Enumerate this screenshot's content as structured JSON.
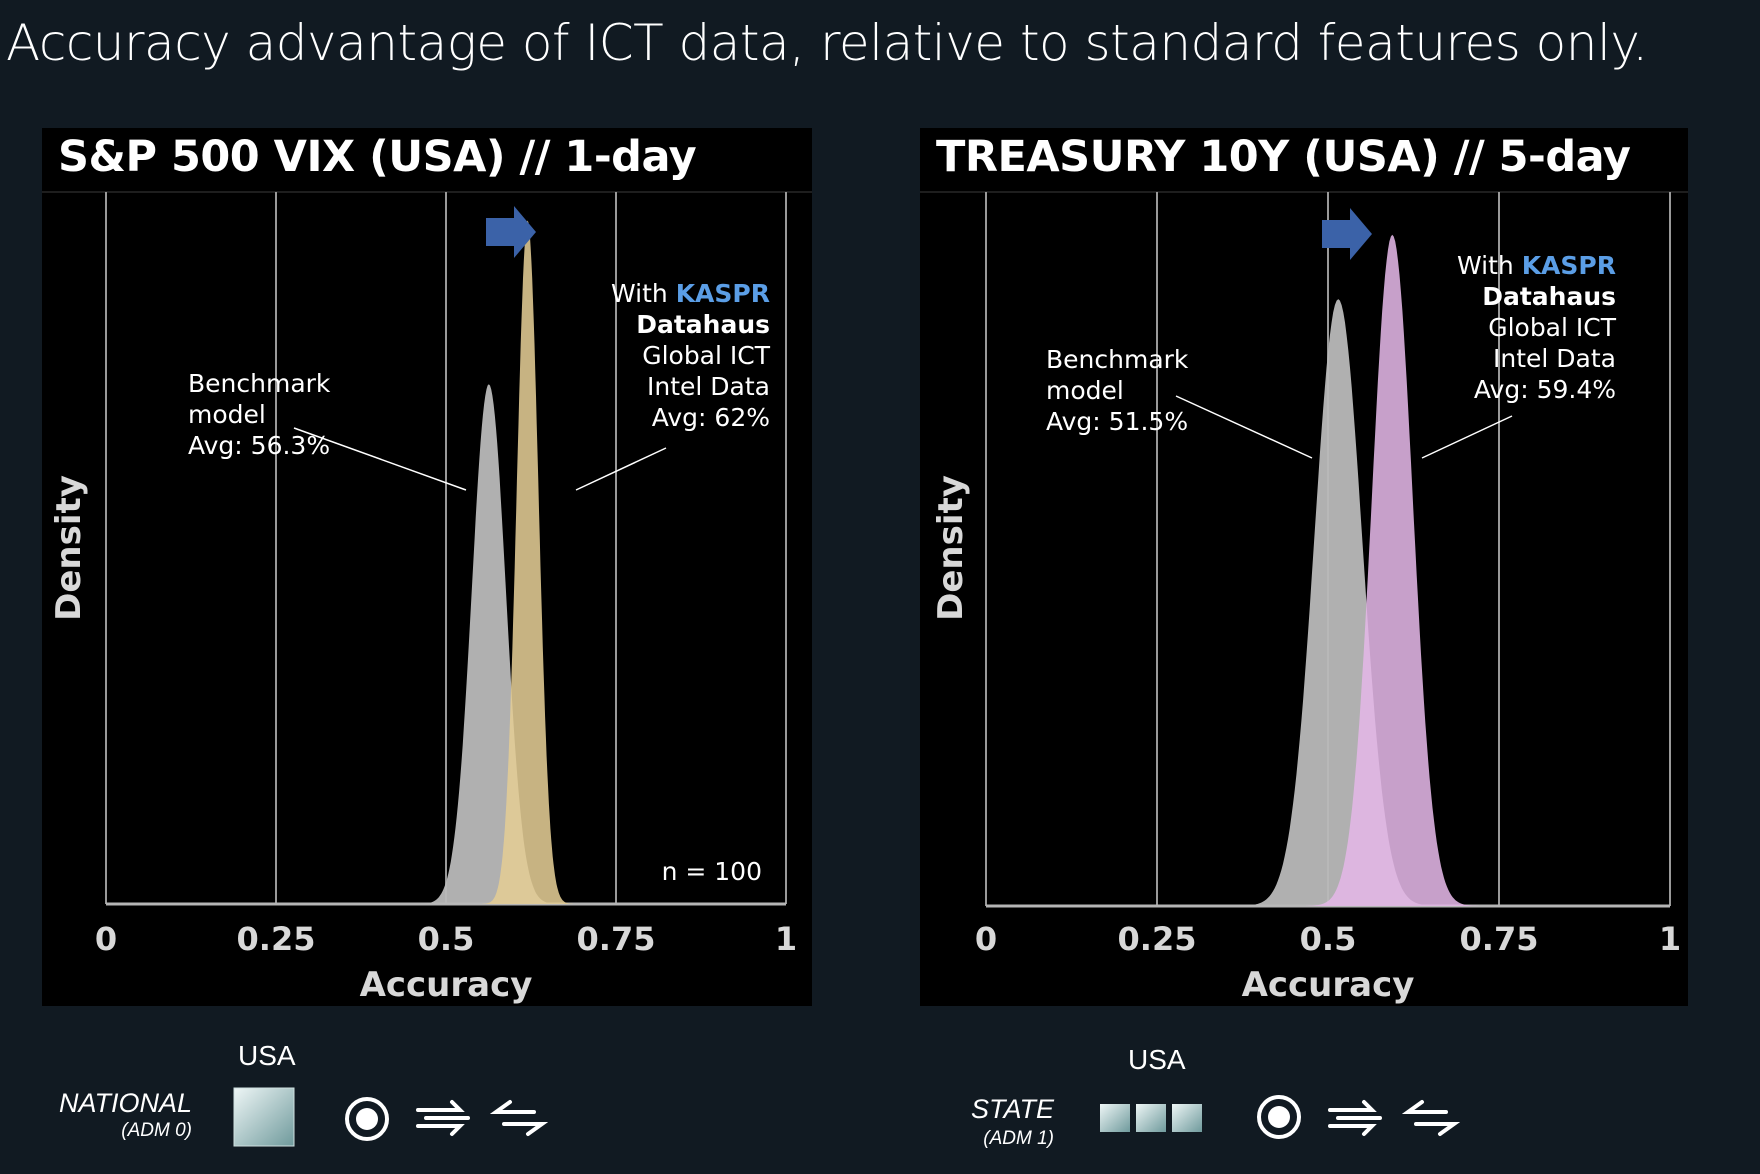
{
  "page_title": "Accuracy advantage of ICT data, relative to standard features only.",
  "colors": {
    "background": "#111a22",
    "panel": "#000000",
    "benchmark": "#b9b9b9",
    "kaspr_left": "#e3cc94",
    "kaspr_right": "#e2b6e6",
    "arrow": "#3b62a8",
    "kaspr_text": "#5b9ee6"
  },
  "chart_data": [
    {
      "type": "area",
      "title": "S&P 500 VIX (USA) // 1-day",
      "xlabel": "Accuracy",
      "ylabel": "Density",
      "xlim": [
        0,
        1
      ],
      "xticks": [
        "0",
        "0.25",
        "0.5",
        "0.75",
        "1"
      ],
      "grid": true,
      "series": [
        {
          "name": "Benchmark model",
          "mean": 0.563,
          "sd": 0.025,
          "peak_density": 0.73,
          "color": "#b9b9b9"
        },
        {
          "name": "With KASPR Datahaus Global ICT Intel Data",
          "mean": 0.62,
          "sd": 0.016,
          "peak_density": 0.96,
          "color": "#e3cc94"
        }
      ],
      "annotations": {
        "benchmark": [
          "Benchmark",
          "model",
          "Avg: 56.3%"
        ],
        "kaspr": {
          "with_prefix": "With ",
          "brand": "KASPR",
          "lines": [
            "Datahaus",
            "Global ICT",
            "Intel Data",
            "Avg: 62%"
          ]
        },
        "n_label": "n = 100"
      }
    },
    {
      "type": "area",
      "title": "TREASURY 10Y (USA) // 5-day",
      "xlabel": "Accuracy",
      "ylabel": "Density",
      "xlim": [
        0,
        1
      ],
      "xticks": [
        "0",
        "0.25",
        "0.5",
        "0.75",
        "1"
      ],
      "grid": true,
      "series": [
        {
          "name": "Benchmark model",
          "mean": 0.515,
          "sd": 0.035,
          "peak_density": 0.85,
          "color": "#b9b9b9"
        },
        {
          "name": "With KASPR Datahaus Global ICT Intel Data",
          "mean": 0.594,
          "sd": 0.03,
          "peak_density": 0.94,
          "color": "#e2b6e6"
        }
      ],
      "annotations": {
        "benchmark": [
          "Benchmark",
          "model",
          "Avg: 51.5%"
        ],
        "kaspr": {
          "with_prefix": "With ",
          "brand": "KASPR",
          "lines": [
            "Datahaus",
            "Global ICT",
            "Intel Data",
            "Avg: 59.4%"
          ]
        }
      }
    }
  ],
  "legends": [
    {
      "country": "USA",
      "level": "NATIONAL",
      "adm": "(ADM 0)",
      "boundary_icon": "single-square-icon"
    },
    {
      "country": "USA",
      "level": "STATE",
      "adm": "(ADM 1)",
      "boundary_icon": "three-squares-icon"
    }
  ]
}
